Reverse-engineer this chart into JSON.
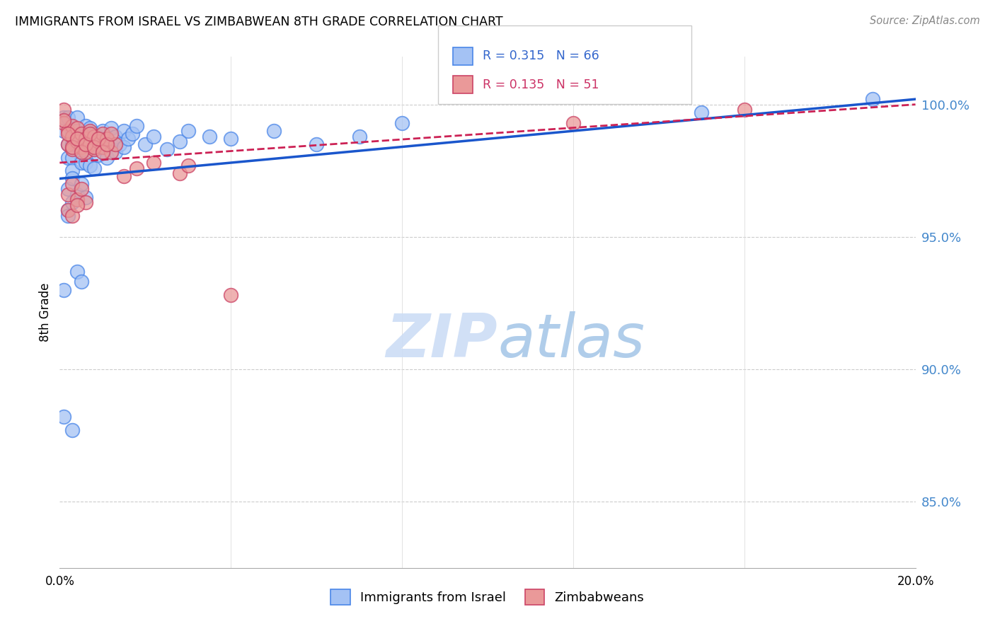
{
  "title": "IMMIGRANTS FROM ISRAEL VS ZIMBABWEAN 8TH GRADE CORRELATION CHART",
  "source": "Source: ZipAtlas.com",
  "ylabel": "8th Grade",
  "ytick_values": [
    0.85,
    0.9,
    0.95,
    1.0
  ],
  "xlim": [
    0.0,
    0.2
  ],
  "ylim": [
    0.825,
    1.018
  ],
  "legend_label_blue": "Immigrants from Israel",
  "legend_label_pink": "Zimbabweans",
  "R_blue": 0.315,
  "N_blue": 66,
  "R_pink": 0.135,
  "N_pink": 51,
  "blue_color": "#a4c2f4",
  "blue_edge": "#4a86e8",
  "pink_color": "#ea9999",
  "pink_edge": "#cc4466",
  "trendline_blue": "#1a56cc",
  "trendline_pink": "#cc2255",
  "blue_x": [
    0.001,
    0.001,
    0.002,
    0.002,
    0.002,
    0.003,
    0.003,
    0.003,
    0.003,
    0.004,
    0.004,
    0.004,
    0.005,
    0.005,
    0.005,
    0.006,
    0.006,
    0.006,
    0.007,
    0.007,
    0.007,
    0.008,
    0.008,
    0.008,
    0.009,
    0.009,
    0.01,
    0.01,
    0.011,
    0.011,
    0.012,
    0.012,
    0.013,
    0.013,
    0.014,
    0.015,
    0.015,
    0.016,
    0.017,
    0.018,
    0.02,
    0.022,
    0.025,
    0.028,
    0.03,
    0.035,
    0.04,
    0.05,
    0.06,
    0.07,
    0.002,
    0.003,
    0.004,
    0.005,
    0.001,
    0.006,
    0.002,
    0.003,
    0.004,
    0.005,
    0.08,
    0.003,
    0.002,
    0.001,
    0.15,
    0.19
  ],
  "blue_y": [
    0.99,
    0.995,
    0.985,
    0.995,
    0.98,
    0.99,
    0.985,
    0.98,
    0.975,
    0.995,
    0.99,
    0.985,
    0.988,
    0.982,
    0.978,
    0.992,
    0.986,
    0.978,
    0.991,
    0.984,
    0.977,
    0.989,
    0.983,
    0.976,
    0.988,
    0.981,
    0.99,
    0.984,
    0.987,
    0.98,
    0.991,
    0.985,
    0.988,
    0.982,
    0.985,
    0.99,
    0.984,
    0.987,
    0.989,
    0.992,
    0.985,
    0.988,
    0.983,
    0.986,
    0.99,
    0.988,
    0.987,
    0.99,
    0.985,
    0.988,
    0.968,
    0.972,
    0.966,
    0.97,
    0.93,
    0.965,
    0.96,
    0.877,
    0.937,
    0.933,
    0.993,
    0.963,
    0.958,
    0.882,
    0.997,
    1.002
  ],
  "pink_x": [
    0.001,
    0.001,
    0.002,
    0.002,
    0.003,
    0.003,
    0.003,
    0.004,
    0.004,
    0.005,
    0.005,
    0.006,
    0.006,
    0.007,
    0.007,
    0.008,
    0.008,
    0.009,
    0.01,
    0.01,
    0.011,
    0.012,
    0.013,
    0.001,
    0.002,
    0.003,
    0.004,
    0.005,
    0.006,
    0.007,
    0.008,
    0.009,
    0.01,
    0.011,
    0.012,
    0.002,
    0.003,
    0.004,
    0.005,
    0.006,
    0.015,
    0.018,
    0.022,
    0.028,
    0.03,
    0.002,
    0.003,
    0.004,
    0.12,
    0.04,
    0.16
  ],
  "pink_y": [
    0.998,
    0.993,
    0.99,
    0.985,
    0.992,
    0.988,
    0.983,
    0.991,
    0.986,
    0.989,
    0.984,
    0.987,
    0.982,
    0.99,
    0.985,
    0.988,
    0.983,
    0.986,
    0.989,
    0.984,
    0.987,
    0.982,
    0.985,
    0.994,
    0.989,
    0.984,
    0.987,
    0.982,
    0.985,
    0.989,
    0.984,
    0.987,
    0.982,
    0.985,
    0.989,
    0.966,
    0.97,
    0.964,
    0.968,
    0.963,
    0.973,
    0.976,
    0.978,
    0.974,
    0.977,
    0.96,
    0.958,
    0.962,
    0.993,
    0.928,
    0.998
  ],
  "blue_trend_x": [
    0.0,
    0.2
  ],
  "blue_trend_y": [
    0.972,
    1.002
  ],
  "pink_trend_x": [
    0.0,
    0.2
  ],
  "pink_trend_y": [
    0.978,
    1.0
  ]
}
